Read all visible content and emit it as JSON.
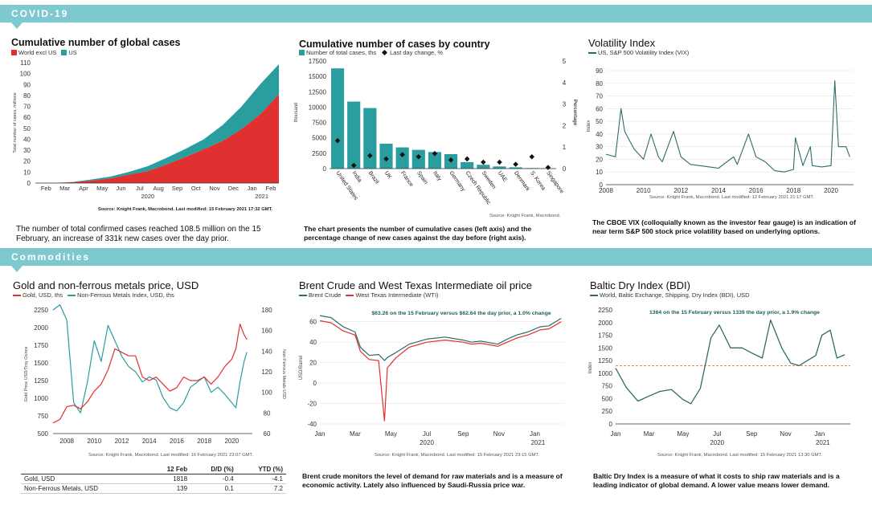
{
  "sections": {
    "covid": "COVID-19",
    "commodities": "Commodities"
  },
  "colors": {
    "teal": "#2a9d9f",
    "red": "#e03030",
    "dark_teal": "#2f6b6a",
    "banner": "#7ec9cf",
    "orange": "#e07a3a"
  },
  "panels": {
    "global_cases": {
      "title": "Cumulative number of global cases",
      "legend": [
        "World excl US",
        "US"
      ],
      "ylabel": "Total number of cases, millions",
      "source": "Source: Knight Frank, Macrobond. Last modified: 15 February 2021 17:32 GMT.",
      "caption": "The number of total confirmed cases reached 108.5 million on the 15 February, an increase of 331k new cases over the day prior."
    },
    "by_country": {
      "title": "Cumulative number of cases by country",
      "legend": [
        "Number of total cases, ths",
        "Last day change, %"
      ],
      "ylabel_left": "thousand",
      "ylabel_right": "Percentage",
      "source": "Source: Knight Frank, Macrobond.",
      "caption": "The chart presents the number of cumulative cases (left axis) and the percentage change of new cases against the day before (right axis)."
    },
    "vix": {
      "title": "Volatility Index",
      "legend": [
        "US, S&P 500 Volatility Index (VIX)"
      ],
      "ylabel": "Index",
      "source": "Source: Knight Frank, Macrobond. Last modified: 12 February 2021 21:17 GMT.",
      "caption": "The CBOE VIX (colloquially known as the investor fear gauge) is an indication of near term S&P 500 stock price volatility based on underlying options."
    },
    "metals": {
      "title": "Gold and non-ferrous metals price, USD",
      "legend": [
        "Gold, USD, ths",
        "Non-Ferrous Metals Index, USD, ths"
      ],
      "ylabel_left": "Gold Price USD/Troy Ounce",
      "ylabel_right": "Non-Ferrous Metals USD",
      "source": "Source: Knight Frank, Macrobond. Last modified: 16 February 2021 23:07 GMT.",
      "table": {
        "headers": [
          "",
          "12 Feb",
          "D/D (%)",
          "YTD (%)"
        ],
        "rows": [
          [
            "Gold, USD",
            "1818",
            "-0.4",
            "-4.1"
          ],
          [
            "Non-Ferrous Metals, USD",
            "139",
            "0.1",
            "7.2"
          ]
        ]
      }
    },
    "oil": {
      "title": "Brent Crude and West Texas Intermediate oil price",
      "legend": [
        "Brent Crude",
        "West Texas Intermediate (WTI)"
      ],
      "annotation": "$63.26 on the 15 February versus $62.64 the day prior, a 1.0% change",
      "ylabel": "USD/Barrel",
      "source": "Source: Knight Frank, Macrobond. Last modified: 15 February 2021 23:15 GMT.",
      "caption": "Brent crude monitors the level of demand for raw materials and is a measure of economic activity. Lately also influenced by Saudi-Russia price war."
    },
    "bdi": {
      "title": "Baltic Dry Index (BDI)",
      "legend": [
        "World, Baltic Exchange, Shipping, Dry Index (BDI), USD"
      ],
      "annotation": "1364 on the 15 February versus 1339 the day prior, a 1.9% change",
      "ylabel": "Index",
      "source": "Source: Knight Frank, Macrobond. Last modified: 15 February 2021 13:30 GMT.",
      "caption": "Baltic Dry Index is a measure of what it costs to ship raw materials and is a leading indicator of global demand. A lower value means lower demand."
    }
  },
  "chart_data": [
    {
      "id": "global_cases",
      "type": "area",
      "title": "Cumulative number of global cases",
      "ylabel": "Total number of cases, millions",
      "x": [
        "Jan",
        "Feb",
        "Mar",
        "Apr",
        "May",
        "Jun",
        "Jul",
        "Aug",
        "Sep",
        "Oct",
        "Nov",
        "Dec",
        "Jan",
        "Feb"
      ],
      "x_ticks": [
        "Feb",
        "Mar",
        "Apr",
        "May",
        "Jun",
        "Jul",
        "Aug",
        "Sep",
        "Oct",
        "Nov",
        "Dec",
        "Jan",
        "Feb"
      ],
      "x_years": [
        "2020",
        "2021"
      ],
      "ylim": [
        0,
        110
      ],
      "yticks": [
        0,
        10,
        20,
        30,
        40,
        50,
        60,
        70,
        80,
        90,
        100,
        110
      ],
      "series": [
        {
          "name": "World excl US",
          "values": [
            0,
            0.1,
            0.8,
            2.2,
            4.1,
            7.6,
            10.9,
            16.9,
            23.7,
            30.9,
            38.5,
            49.2,
            62.8,
            80.9
          ]
        },
        {
          "name": "US",
          "values": [
            0,
            0,
            0.2,
            1.1,
            1.8,
            2.6,
            4.5,
            6.1,
            7.4,
            9.2,
            14.5,
            20.6,
            27.4,
            27.6
          ]
        }
      ]
    },
    {
      "id": "by_country",
      "type": "bar",
      "title": "Cumulative number of cases by country",
      "categories": [
        "United States",
        "India",
        "Brazil",
        "UK",
        "France",
        "Spain",
        "Italy",
        "Germany",
        "Czech Republic",
        "Sweden",
        "UAE",
        "Denmark",
        "S. Korea",
        "Singapore"
      ],
      "series": [
        {
          "name": "Number of total cases, ths",
          "axis": "left",
          "values": [
            16300,
            10900,
            9850,
            4050,
            3450,
            3050,
            2700,
            2350,
            1050,
            620,
            350,
            205,
            85,
            60
          ]
        },
        {
          "name": "Last day change, %",
          "axis": "right",
          "values": [
            1.3,
            0.15,
            0.6,
            0.45,
            0.65,
            0.55,
            0.7,
            0.4,
            0.45,
            0.3,
            0.3,
            0.2,
            0.55,
            0.05
          ]
        }
      ],
      "ylim_left": [
        0,
        17500
      ],
      "yticks_left": [
        0,
        2500,
        5000,
        7500,
        10000,
        12500,
        15000,
        17500
      ],
      "ylim_right": [
        0,
        5
      ],
      "yticks_right": [
        0,
        1,
        2,
        3,
        4,
        5
      ]
    },
    {
      "id": "vix",
      "type": "line",
      "title": "Volatility Index",
      "ylabel": "Index",
      "x": [
        2008,
        2008.5,
        2008.8,
        2009,
        2009.5,
        2010,
        2010.4,
        2010.8,
        2011,
        2011.6,
        2012,
        2012.5,
        2013,
        2014,
        2014.8,
        2015,
        2015.6,
        2016,
        2016.5,
        2017,
        2017.5,
        2018,
        2018.1,
        2018.5,
        2018.9,
        2019,
        2019.5,
        2020,
        2020.2,
        2020.4,
        2020.8,
        2021
      ],
      "values": [
        24,
        22,
        60,
        42,
        28,
        20,
        40,
        22,
        18,
        42,
        22,
        16,
        15,
        13,
        22,
        16,
        40,
        22,
        18,
        11,
        10,
        12,
        37,
        15,
        30,
        15,
        14,
        15,
        82,
        30,
        30,
        22
      ],
      "xlim": [
        2008,
        2021.2
      ],
      "x_ticks": [
        "2008",
        "2010",
        "2012",
        "2014",
        "2016",
        "2018",
        "2020"
      ],
      "ylim": [
        0,
        90
      ],
      "yticks": [
        0,
        10,
        20,
        30,
        40,
        50,
        60,
        70,
        80,
        90
      ]
    },
    {
      "id": "metals",
      "type": "line",
      "title": "Gold and non-ferrous metals price, USD",
      "x": [
        2007,
        2007.5,
        2008,
        2008.5,
        2009,
        2009.5,
        2010,
        2010.5,
        2011,
        2011.5,
        2012,
        2012.5,
        2013,
        2013.5,
        2014,
        2014.5,
        2015,
        2015.5,
        2016,
        2016.5,
        2017,
        2017.5,
        2018,
        2018.5,
        2019,
        2019.5,
        2020,
        2020.3,
        2020.6,
        2020.9,
        2021.1
      ],
      "series": [
        {
          "name": "Gold, USD, ths",
          "axis": "left",
          "values": [
            650,
            700,
            880,
            900,
            850,
            950,
            1100,
            1200,
            1400,
            1700,
            1650,
            1600,
            1600,
            1300,
            1250,
            1300,
            1200,
            1100,
            1150,
            1300,
            1250,
            1250,
            1300,
            1200,
            1300,
            1450,
            1550,
            1700,
            2050,
            1900,
            1830
          ]
        },
        {
          "name": "Non-Ferrous Metals Index, USD, ths",
          "axis": "right",
          "values": [
            180,
            185,
            170,
            90,
            80,
            110,
            150,
            130,
            165,
            150,
            135,
            125,
            120,
            110,
            115,
            112,
            95,
            85,
            82,
            90,
            105,
            110,
            115,
            100,
            105,
            98,
            90,
            85,
            110,
            130,
            139
          ]
        }
      ],
      "xlim": [
        2007,
        2021.5
      ],
      "x_ticks": [
        "2008",
        "2010",
        "2012",
        "2014",
        "2016",
        "2018",
        "2020"
      ],
      "ylim_left": [
        500,
        2250
      ],
      "yticks_left": [
        500,
        750,
        1000,
        1250,
        1500,
        1750,
        2000,
        2250
      ],
      "ylim_right": [
        60,
        180
      ],
      "yticks_right": [
        60,
        80,
        100,
        120,
        140,
        160,
        180
      ]
    },
    {
      "id": "oil",
      "type": "line",
      "title": "Brent Crude and West Texas Intermediate oil price",
      "ylabel": "USD/Barrel",
      "x": [
        "2020-01-01",
        "2020-01-20",
        "2020-02-10",
        "2020-03-01",
        "2020-03-10",
        "2020-03-25",
        "2020-04-10",
        "2020-04-20",
        "2020-04-25",
        "2020-05-10",
        "2020-06-01",
        "2020-07-01",
        "2020-08-01",
        "2020-09-01",
        "2020-09-15",
        "2020-10-01",
        "2020-10-30",
        "2020-11-15",
        "2020-12-01",
        "2020-12-20",
        "2021-01-10",
        "2021-01-25",
        "2021-02-15"
      ],
      "series": [
        {
          "name": "Brent Crude",
          "values": [
            66,
            64,
            55,
            50,
            35,
            27,
            28,
            22,
            25,
            30,
            38,
            43,
            45,
            42,
            40,
            41,
            38,
            43,
            47,
            50,
            55,
            56,
            63.3
          ]
        },
        {
          "name": "West Texas Intermediate (WTI)",
          "values": [
            61,
            59,
            51,
            47,
            31,
            23,
            22,
            -37,
            15,
            25,
            35,
            40,
            42,
            40,
            38,
            39,
            36,
            40,
            44,
            47,
            52,
            53,
            60
          ]
        }
      ],
      "x_ticks": [
        "Jan",
        "Mar",
        "May",
        "Jul",
        "Sep",
        "Nov",
        "Jan"
      ],
      "x_years": [
        "2020",
        "2021"
      ],
      "ylim": [
        -40,
        70
      ],
      "yticks": [
        -40,
        -20,
        0,
        20,
        40,
        60
      ]
    },
    {
      "id": "bdi",
      "type": "line",
      "title": "Baltic Dry Index (BDI)",
      "ylabel": "Index",
      "x": [
        "2020-01-01",
        "2020-01-20",
        "2020-02-10",
        "2020-03-01",
        "2020-03-20",
        "2020-04-10",
        "2020-05-01",
        "2020-05-15",
        "2020-06-01",
        "2020-06-20",
        "2020-07-05",
        "2020-07-25",
        "2020-08-15",
        "2020-09-01",
        "2020-09-20",
        "2020-10-05",
        "2020-10-25",
        "2020-11-10",
        "2020-11-25",
        "2020-12-10",
        "2020-12-25",
        "2021-01-05",
        "2021-01-20",
        "2021-02-01",
        "2021-02-15"
      ],
      "values": [
        1100,
        720,
        450,
        550,
        640,
        680,
        480,
        400,
        700,
        1700,
        1950,
        1500,
        1500,
        1400,
        1300,
        2050,
        1500,
        1200,
        1150,
        1250,
        1350,
        1750,
        1850,
        1300,
        1364
      ],
      "reference_line": 1150,
      "x_ticks": [
        "Jan",
        "Mar",
        "May",
        "Jul",
        "Sep",
        "Nov",
        "Jan"
      ],
      "x_years": [
        "2020",
        "2021"
      ],
      "ylim": [
        0,
        2250
      ],
      "yticks": [
        0,
        250,
        500,
        750,
        1000,
        1250,
        1500,
        1750,
        2000,
        2250
      ]
    }
  ]
}
